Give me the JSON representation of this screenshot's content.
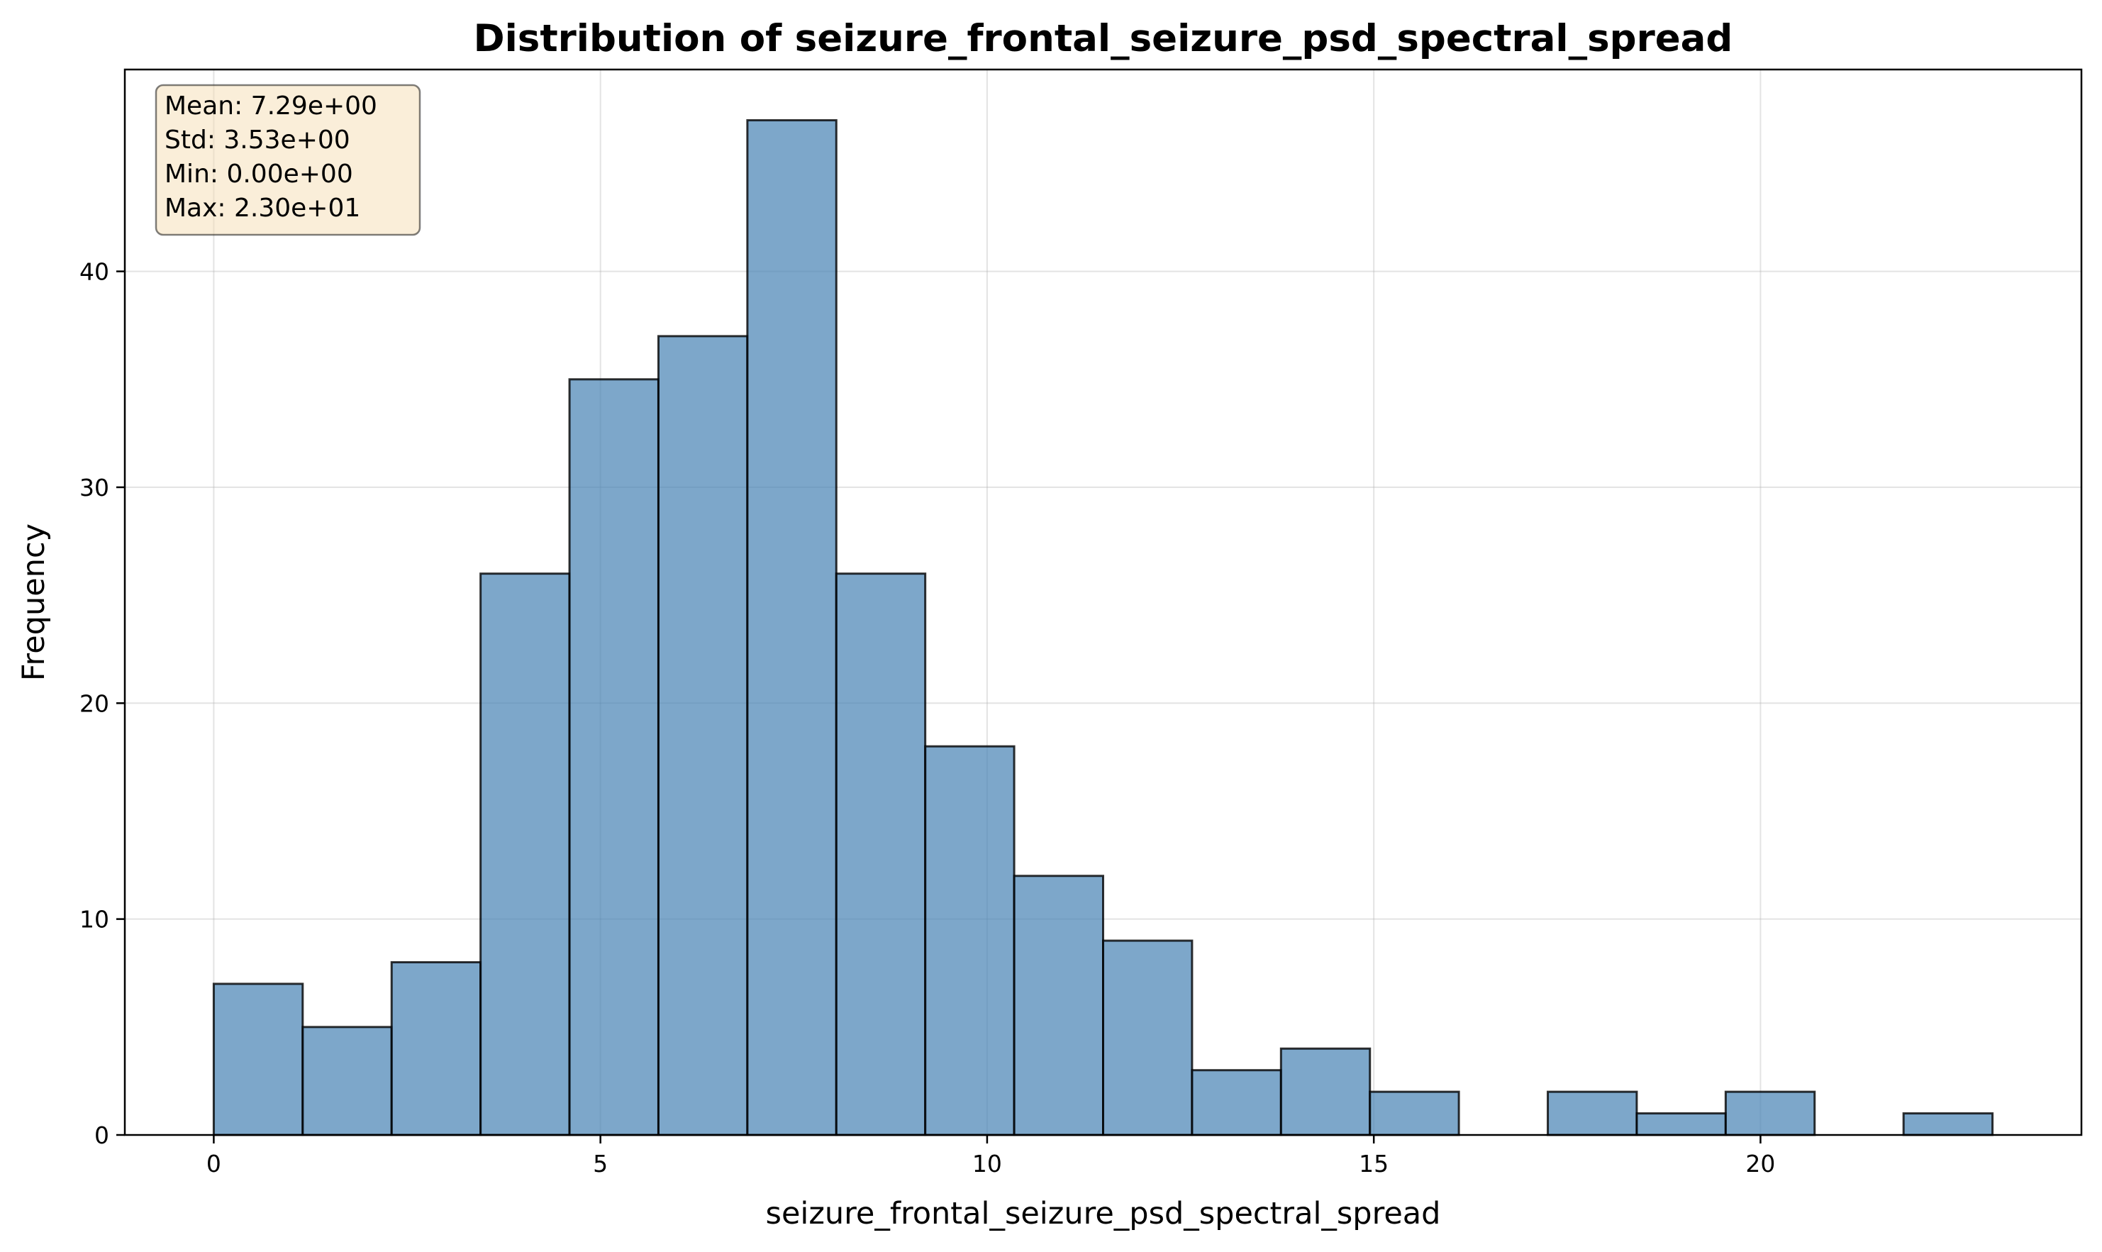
{
  "chart_data": {
    "type": "histogram",
    "title": "Distribution of seizure_frontal_seizure_psd_spectral_spread",
    "xlabel": "seizure_frontal_seizure_psd_spectral_spread",
    "ylabel": "Frequency",
    "xlim": [
      -1.15,
      24.15
    ],
    "ylim": [
      0,
      49.35
    ],
    "x_ticks": [
      0,
      5,
      10,
      15,
      20
    ],
    "y_ticks": [
      0,
      10,
      20,
      30,
      40
    ],
    "grid": true,
    "bin_start": 0,
    "bin_end": 23,
    "bin_count": 20,
    "bin_width": 1.15,
    "counts": [
      7,
      5,
      8,
      26,
      35,
      37,
      47,
      26,
      18,
      12,
      9,
      3,
      4,
      2,
      0,
      2,
      1,
      2,
      0,
      1
    ],
    "colors": {
      "bar_fill": "#4682b4",
      "bar_edge": "#000000",
      "box_fill": "#f5deb3",
      "grid": "#b0b0b0"
    },
    "stats_box": {
      "position": "top-left",
      "lines": [
        "Mean: 7.29e+00",
        "Std: 3.53e+00",
        "Min: 0.00e+00",
        "Max: 2.30e+01"
      ]
    }
  }
}
